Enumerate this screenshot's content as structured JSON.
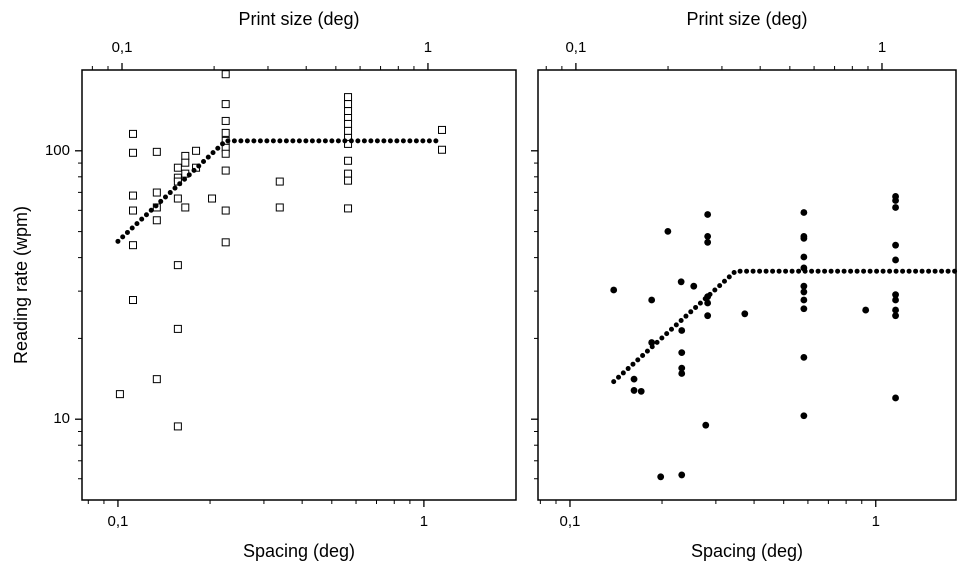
{
  "chart_data": [
    {
      "type": "scatter",
      "xlabel": "Spacing (deg)",
      "x2label": "Print size (deg)",
      "ylabel": "Reading rate (wpm)",
      "log_x": true,
      "log_y": true,
      "show_ytick_labels": true,
      "xlim": [
        0.0763,
        2.0
      ],
      "xticks": [
        {
          "value": 0.1,
          "label": "0,1"
        },
        1
      ],
      "xticks_minor": [
        0.08,
        0.09,
        0.2,
        0.3,
        0.4,
        0.5,
        0.6,
        0.7,
        0.8,
        0.9
      ],
      "x2lim": [
        0.074,
        1.94
      ],
      "x2ticks": [
        {
          "value": 0.1,
          "label": "0,1"
        },
        1
      ],
      "x2ticks_minor": [
        0.08,
        0.09,
        0.2,
        0.3,
        0.4,
        0.5,
        0.6,
        0.7,
        0.8,
        0.9
      ],
      "ylim": [
        5,
        200
      ],
      "yticks": [
        10,
        100
      ],
      "yticks_minor": [
        6,
        7,
        8,
        9,
        20,
        30,
        40,
        50,
        60,
        70,
        80,
        90
      ],
      "series": [
        {
          "marker": "open-square",
          "color": "#000000",
          "x": [
            0.1015,
            0.112,
            0.112,
            0.112,
            0.112,
            0.112,
            0.112,
            0.134,
            0.134,
            0.134,
            0.134,
            0.134,
            0.157,
            0.157,
            0.157,
            0.157,
            0.157,
            0.157,
            0.157,
            0.166,
            0.166,
            0.166,
            0.166,
            0.18,
            0.18,
            0.203,
            0.225,
            0.225,
            0.225,
            0.225,
            0.225,
            0.225,
            0.225,
            0.225,
            0.225,
            0.225,
            0.338,
            0.338,
            0.565,
            0.565,
            0.565,
            0.565,
            0.565,
            0.565,
            0.565,
            0.565,
            0.565,
            0.565,
            0.565,
            0.565,
            1.146,
            1.146
          ],
          "values": [
            12.4,
            115.6,
            98.3,
            68.1,
            59.9,
            44.5,
            27.8,
            99.1,
            69.9,
            61.5,
            55.1,
            14.1,
            86.5,
            79.4,
            76.8,
            66.4,
            37.5,
            21.7,
            9.4,
            95.7,
            90.3,
            82.2,
            61.5,
            100,
            86.5,
            66.4,
            192.9,
            149.3,
            129.2,
            116.6,
            108.9,
            102.6,
            97.5,
            84.4,
            59.9,
            45.6,
            76.8,
            61.5,
            158.5,
            149.3,
            140.6,
            132.5,
            125.9,
            118.6,
            111.7,
            106.1,
            91.8,
            82.2,
            77.4,
            61.0,
            119.6,
            100.9
          ]
        },
        {
          "marker": "dotted-line",
          "color": "#000000",
          "x": [
            0.1,
            0.225,
            1.14
          ],
          "values": [
            46.0,
            108.9,
            108.9
          ]
        }
      ]
    },
    {
      "type": "scatter",
      "xlabel": "Spacing (deg)",
      "x2label": "Print size (deg)",
      "log_x": true,
      "log_y": true,
      "show_ytick_labels": false,
      "xlim": [
        0.0786,
        1.83
      ],
      "xticks": [
        {
          "value": 0.1,
          "label": "0,1"
        },
        1
      ],
      "xticks_minor": [
        0.08,
        0.09,
        0.2,
        0.3,
        0.4,
        0.5,
        0.6,
        0.7,
        0.8,
        0.9
      ],
      "x2lim": [
        0.0752,
        1.745
      ],
      "x2ticks": [
        {
          "value": 0.1,
          "label": "0,1"
        },
        1
      ],
      "x2ticks_minor": [
        0.08,
        0.09,
        0.2,
        0.3,
        0.4,
        0.5,
        0.6,
        0.7,
        0.8,
        0.9
      ],
      "ylim": [
        5,
        200
      ],
      "yticks": [
        10,
        100
      ],
      "yticks_minor": [
        6,
        7,
        8,
        9,
        20,
        30,
        40,
        50,
        60,
        70,
        80,
        90
      ],
      "series": [
        {
          "marker": "filled-circle",
          "color": "#000000",
          "x": [
            0.139,
            0.162,
            0.162,
            0.171,
            0.185,
            0.185,
            0.198,
            0.209,
            0.231,
            0.232,
            0.232,
            0.232,
            0.232,
            0.232,
            0.254,
            0.278,
            0.282,
            0.282,
            0.282,
            0.282,
            0.282,
            0.282,
            0.373,
            0.582,
            0.582,
            0.582,
            0.582,
            0.582,
            0.582,
            0.582,
            0.582,
            0.582,
            0.582,
            0.582,
            0.927,
            1.161,
            1.161,
            1.161,
            1.161,
            1.161,
            1.161,
            1.161,
            1.161,
            1.161,
            1.161
          ],
          "values": [
            30.3,
            14.1,
            12.8,
            12.7,
            27.8,
            19.3,
            6.1,
            50.1,
            32.5,
            21.4,
            17.7,
            15.5,
            14.8,
            6.2,
            31.3,
            9.5,
            57.9,
            48.0,
            45.6,
            28.6,
            27.1,
            24.3,
            24.7,
            58.9,
            48.0,
            47.2,
            40.2,
            36.6,
            31.3,
            29.8,
            27.8,
            25.8,
            17.0,
            10.3,
            25.5,
            67.6,
            65.3,
            61.5,
            44.5,
            39.2,
            29.1,
            27.8,
            25.5,
            24.3,
            12.0
          ]
        },
        {
          "marker": "dotted-line",
          "color": "#000000",
          "x": [
            0.139,
            0.348,
            1.82
          ],
          "values": [
            13.8,
            35.6,
            35.6
          ]
        }
      ]
    }
  ]
}
